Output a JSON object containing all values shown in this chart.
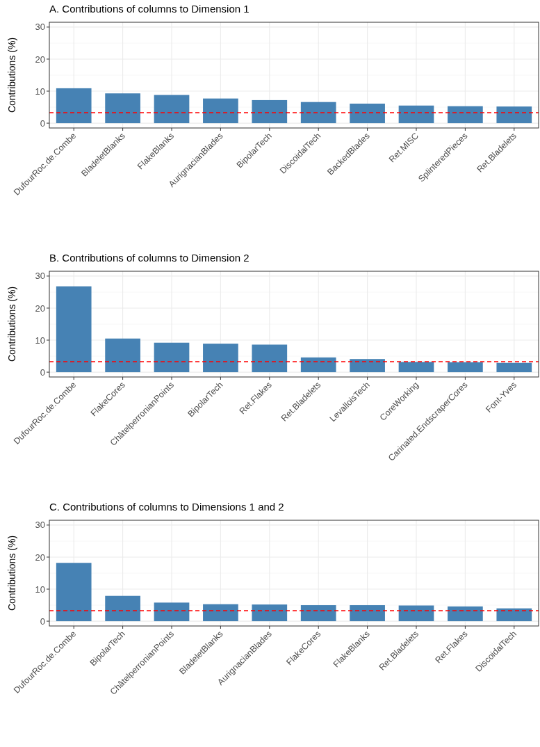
{
  "chart_data": [
    {
      "type": "bar",
      "title": "A. Contributions of columns to Dimension 1",
      "ylabel": "Contributions (%)",
      "categories": [
        "DufourRoc.de.Combe",
        "BladeletBlanks",
        "FlakeBlanks",
        "AurignacianBlades",
        "BipolarTech",
        "DiscoidalTech",
        "BackedBlades",
        "Ret.MISC",
        "SplinteredPieces",
        "Ret.Bladelets"
      ],
      "values": [
        10.9,
        9.3,
        8.8,
        7.7,
        7.2,
        6.6,
        6.1,
        5.5,
        5.3,
        5.2
      ],
      "color": "#4682b4",
      "ylim": [
        -1.5,
        31.5
      ],
      "yticks": [
        0,
        10,
        20,
        30
      ],
      "grid": true,
      "ref_lines": [
        {
          "axis": "y",
          "value": 3.3,
          "color": "#ff0000",
          "line_style": "dashed"
        }
      ]
    },
    {
      "type": "bar",
      "title": "B. Contributions of columns to Dimension 2",
      "ylabel": "Contributions (%)",
      "categories": [
        "DufourRoc.de.Combe",
        "FlakeCores",
        "ChâtelperronianPoints",
        "BipolarTech",
        "Ret.Flakes",
        "Ret.Bladelets",
        "LevalloisTech",
        "CoreWorking",
        "Carinated.EndscraperCores",
        "Font-Yves"
      ],
      "values": [
        26.8,
        10.5,
        9.2,
        8.9,
        8.6,
        4.6,
        4.1,
        3.2,
        3.1,
        2.9
      ],
      "color": "#4682b4",
      "ylim": [
        -1.5,
        31.5
      ],
      "yticks": [
        0,
        10,
        20,
        30
      ],
      "grid": true,
      "ref_lines": [
        {
          "axis": "y",
          "value": 3.3,
          "color": "#ff0000",
          "line_style": "dashed"
        }
      ]
    },
    {
      "type": "bar",
      "title": "C. Contributions of columns to Dimensions 1 and 2",
      "ylabel": "Contributions (%)",
      "categories": [
        "DufourRoc.de.Combe",
        "BipolarTech",
        "ChâtelperronianPoints",
        "BladeletBlanks",
        "AurignacianBlades",
        "FlakeCores",
        "FlakeBlanks",
        "Ret.Bladelets",
        "Ret.Flakes",
        "DiscoidalTech"
      ],
      "values": [
        18.2,
        7.9,
        5.8,
        5.3,
        5.2,
        5.0,
        5.0,
        4.9,
        4.6,
        4.0
      ],
      "color": "#4682b4",
      "ylim": [
        -1.5,
        31.5
      ],
      "yticks": [
        0,
        10,
        20,
        30
      ],
      "grid": true,
      "ref_lines": [
        {
          "axis": "y",
          "value": 3.3,
          "color": "#ff0000",
          "line_style": "dashed"
        }
      ]
    }
  ]
}
